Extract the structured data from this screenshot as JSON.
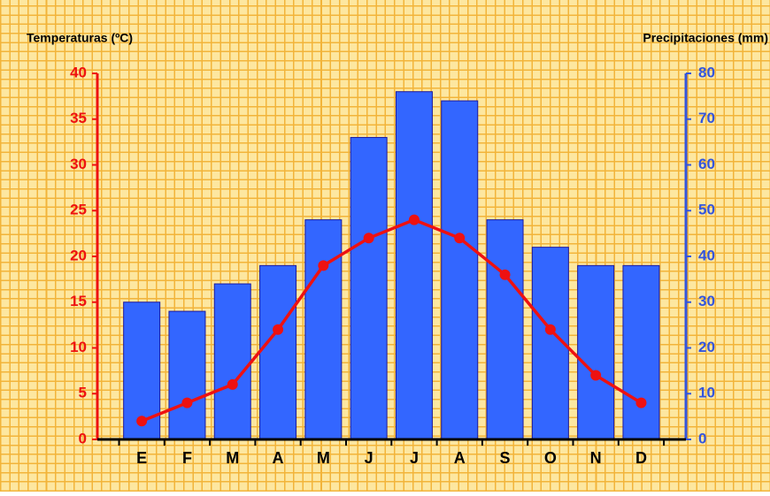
{
  "chart_data": {
    "type": "combo",
    "y_label": "Temperaturas (ºC)",
    "y2_label": "Precipitaciones (mm)",
    "categories": [
      "E",
      "F",
      "M",
      "A",
      "M",
      "J",
      "J",
      "A",
      "S",
      "O",
      "N",
      "D"
    ],
    "series": [
      {
        "type": "bar",
        "axis": "y2",
        "color": "#3366ff",
        "values": [
          30,
          28,
          34,
          38,
          48,
          66,
          76,
          74,
          48,
          42,
          38,
          38
        ]
      },
      {
        "type": "line",
        "axis": "y",
        "color": "#ee1111",
        "values": [
          2,
          4,
          6,
          12,
          19,
          22,
          24,
          22,
          18,
          12,
          7,
          4
        ]
      }
    ],
    "ylim": [
      0,
      40
    ],
    "yticks": [
      0,
      5,
      10,
      15,
      20,
      25,
      30,
      35,
      40
    ],
    "y_color": "#ee1111",
    "y2lim": [
      0,
      80
    ],
    "y2ticks": [
      0,
      10,
      20,
      30,
      40,
      50,
      60,
      70,
      80
    ],
    "y2_color": "#3355dd"
  }
}
